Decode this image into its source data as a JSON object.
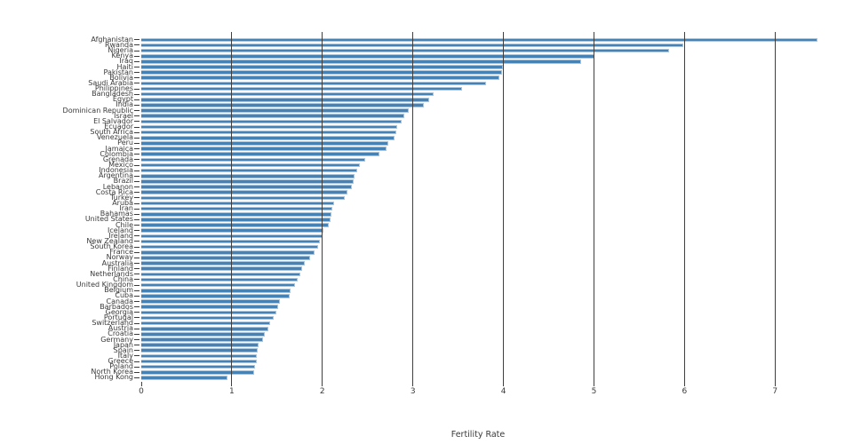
{
  "figure": {
    "background": "#ffffff",
    "xlabel": "Fertility Rate"
  },
  "chart_data": {
    "type": "bar",
    "orientation": "horizontal",
    "title": "",
    "xlabel": "Fertility Rate",
    "ylabel": "",
    "xlim": [
      0,
      7.85
    ],
    "xticks": [
      0,
      1,
      2,
      3,
      4,
      5,
      6,
      7
    ],
    "grid": "vertical-on-top-of-bars",
    "legend": "none",
    "bar_color": "#4682b4",
    "bar_edge_color": "#a9c6de",
    "grid_color": "#3f3f3f",
    "text_color": "#3a3a3a",
    "categories": [
      "Afghanistan",
      "Rwanda",
      "Nigeria",
      "Kenya",
      "Iraq",
      "Haiti",
      "Pakistan",
      "Bolivia",
      "Saudi Arabia",
      "Philippines",
      "Bangladesh",
      "Egypt",
      "India",
      "Dominican Republic",
      "Israel",
      "El Salvador",
      "Ecuador",
      "South Africa",
      "Venezuela",
      "Peru",
      "Jamaica",
      "Colombia",
      "Grenada",
      "Mexico",
      "Indonesia",
      "Argentina",
      "Brazil",
      "Lebanon",
      "Costa Rica",
      "Turkey",
      "Aruba",
      "Iran",
      "Bahamas",
      "United States",
      "Chile",
      "Iceland",
      "Ireland",
      "New Zealand",
      "South Korea",
      "France",
      "Norway",
      "Australia",
      "Finland",
      "Netherlands",
      "China",
      "United Kingdom",
      "Belgium",
      "Cuba",
      "Canada",
      "Barbados",
      "Georgia",
      "Portugal",
      "Switzerland",
      "Austria",
      "Croatia",
      "Germany",
      "Japan",
      "Spain",
      "Italy",
      "Greece",
      "Poland",
      "North Korea",
      "Hong Kong"
    ],
    "values": [
      7.47,
      5.99,
      5.83,
      5.0,
      4.86,
      3.99,
      3.98,
      3.95,
      3.81,
      3.54,
      3.23,
      3.18,
      3.12,
      2.95,
      2.9,
      2.88,
      2.83,
      2.82,
      2.8,
      2.73,
      2.71,
      2.63,
      2.47,
      2.41,
      2.38,
      2.36,
      2.35,
      2.33,
      2.28,
      2.25,
      2.13,
      2.11,
      2.1,
      2.09,
      2.07,
      2.01,
      2.0,
      1.97,
      1.95,
      1.91,
      1.86,
      1.81,
      1.78,
      1.76,
      1.73,
      1.7,
      1.65,
      1.64,
      1.53,
      1.51,
      1.49,
      1.46,
      1.42,
      1.4,
      1.36,
      1.34,
      1.3,
      1.29,
      1.28,
      1.28,
      1.26,
      1.25,
      0.95
    ]
  }
}
